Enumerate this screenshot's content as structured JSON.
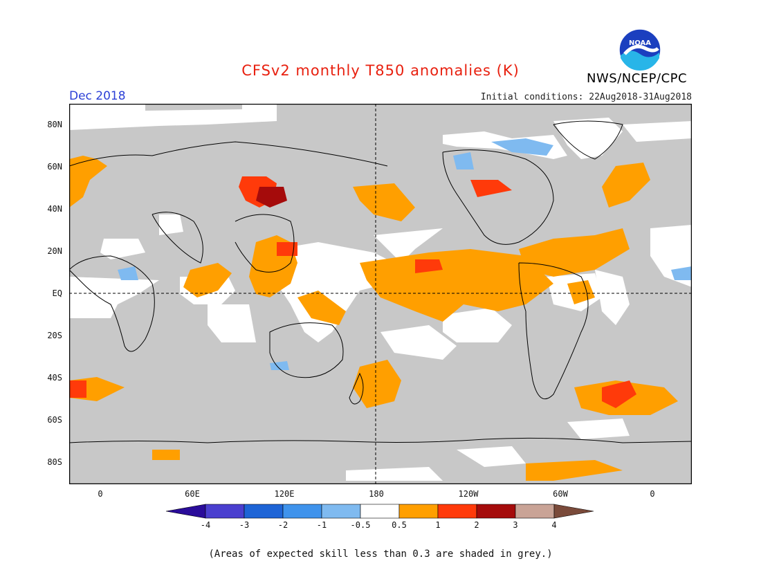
{
  "header": {
    "title": "CFSv2 monthly T850 anomalies (K)",
    "month": "Dec 2018",
    "initial_conditions": "Initial conditions: 22Aug2018-31Aug2018",
    "organization": "NWS/NCEP/CPC",
    "logo_text": "NOAA"
  },
  "axes": {
    "lat_labels": [
      "80N",
      "60N",
      "40N",
      "20N",
      "EQ",
      "20S",
      "40S",
      "60S",
      "80S"
    ],
    "lon_labels": [
      "0",
      "60E",
      "120E",
      "180",
      "120W",
      "60W",
      "0"
    ]
  },
  "colorbar": {
    "labels": [
      "-4",
      "-3",
      "-2",
      "-1",
      "-0.5",
      "0.5",
      "1",
      "2",
      "3",
      "4"
    ],
    "colors": {
      "lt_-4": "#2a0c9a",
      "-4_-3": "#4a3fcf",
      "-3_-2": "#1e64d6",
      "-2_-1": "#3f93ec",
      "-1_-0.5": "#7fbaf0",
      "-0.5_0.5": "#ffffff",
      "0.5_1": "#ff9f00",
      "1_2": "#ff3a0a",
      "2_3": "#a50b0b",
      "3_4": "#c9a396",
      "gt_4": "#7a4a3a"
    }
  },
  "map_colors": {
    "low_skill_grey": "#c8c8c8",
    "orange": "#ff9f00",
    "red": "#ff3a0a",
    "dark_red": "#a50b0b",
    "light_blue": "#7fbaf0",
    "coastline": "#000000"
  },
  "footnote": "(Areas of expected skill less than 0.3 are shaded in grey.)"
}
